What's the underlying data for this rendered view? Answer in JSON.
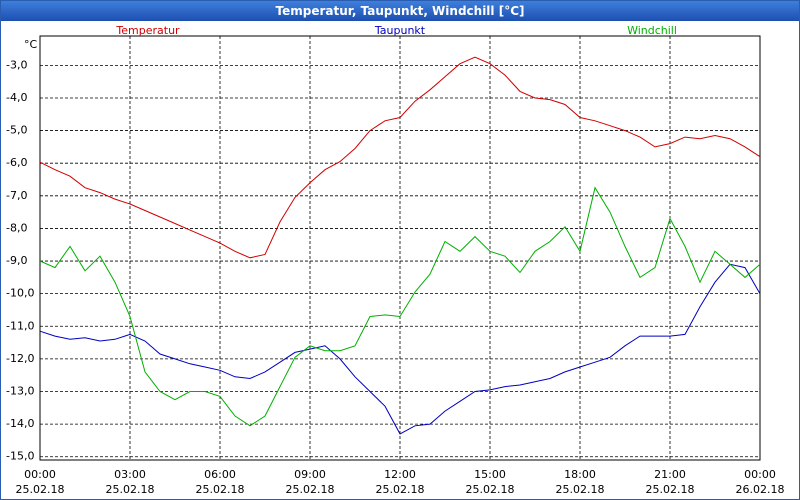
{
  "chart_data": {
    "type": "line",
    "title": "Temperatur, Taupunkt, Windchill [°C]",
    "y_unit": "°C",
    "x": [
      0,
      0.5,
      1,
      1.5,
      2,
      2.5,
      3,
      3.5,
      4,
      4.5,
      5,
      5.5,
      6,
      6.5,
      7,
      7.5,
      8,
      8.5,
      9,
      9.5,
      10,
      10.5,
      11,
      11.5,
      12,
      12.5,
      13,
      13.5,
      14,
      14.5,
      15,
      15.5,
      16,
      16.5,
      17,
      17.5,
      18,
      18.5,
      19,
      19.5,
      20,
      20.5,
      21,
      21.5,
      22,
      22.5,
      23,
      23.5,
      24
    ],
    "series": [
      {
        "name": "Temperatur",
        "color": "#d00000",
        "values": [
          -5.97,
          -6.2,
          -6.4,
          -6.75,
          -6.9,
          -7.1,
          -7.25,
          -7.45,
          -7.65,
          -7.85,
          -8.05,
          -8.25,
          -8.45,
          -8.7,
          -8.9,
          -8.8,
          -7.8,
          -7.05,
          -6.6,
          -6.2,
          -5.95,
          -5.55,
          -5.0,
          -4.7,
          -4.6,
          -4.1,
          -3.75,
          -3.35,
          -2.95,
          -2.75,
          -2.95,
          -3.3,
          -3.8,
          -4.0,
          -4.05,
          -4.2,
          -4.6,
          -4.7,
          -4.85,
          -5.0,
          -5.2,
          -5.5,
          -5.4,
          -5.2,
          -5.25,
          -5.15,
          -5.25,
          -5.5,
          -5.8
        ]
      },
      {
        "name": "Taupunkt",
        "color": "#0000c0",
        "values": [
          -11.15,
          -11.3,
          -11.4,
          -11.35,
          -11.45,
          -11.4,
          -11.25,
          -11.45,
          -11.85,
          -12.0,
          -12.15,
          -12.25,
          -12.35,
          -12.55,
          -12.6,
          -12.4,
          -12.1,
          -11.8,
          -11.7,
          -11.6,
          -12.0,
          -12.55,
          -13.0,
          -13.45,
          -14.3,
          -14.05,
          -14.0,
          -13.6,
          -13.3,
          -13.0,
          -12.95,
          -12.85,
          -12.8,
          -12.7,
          -12.6,
          -12.4,
          -12.25,
          -12.1,
          -11.95,
          -11.6,
          -11.3,
          -11.3,
          -11.3,
          -11.25,
          -10.4,
          -9.65,
          -9.1,
          -9.2,
          -10.0
        ]
      },
      {
        "name": "Windchill",
        "color": "#00b000",
        "values": [
          -9.0,
          -9.2,
          -8.55,
          -9.3,
          -8.85,
          -9.65,
          -10.7,
          -12.4,
          -13.0,
          -13.25,
          -13.0,
          -13.0,
          -13.15,
          -13.75,
          -14.05,
          -13.75,
          -12.85,
          -11.95,
          -11.6,
          -11.75,
          -11.75,
          -11.6,
          -10.7,
          -10.65,
          -10.7,
          -9.95,
          -9.4,
          -8.4,
          -8.7,
          -8.25,
          -8.7,
          -8.85,
          -9.35,
          -8.7,
          -8.4,
          -7.95,
          -8.7,
          -6.75,
          -7.5,
          -8.55,
          -9.5,
          -9.2,
          -7.7,
          -8.55,
          -9.65,
          -8.7,
          -9.1,
          -9.5,
          -9.1
        ]
      }
    ],
    "xlim": [
      0,
      24
    ],
    "xticks": [
      {
        "value": 0,
        "label": "00:00",
        "date": "25.02.18"
      },
      {
        "value": 3,
        "label": "03:00",
        "date": "25.02.18"
      },
      {
        "value": 6,
        "label": "06:00",
        "date": "25.02.18"
      },
      {
        "value": 9,
        "label": "09:00",
        "date": "25.02.18"
      },
      {
        "value": 12,
        "label": "12:00",
        "date": "25.02.18"
      },
      {
        "value": 15,
        "label": "15:00",
        "date": "25.02.18"
      },
      {
        "value": 18,
        "label": "18:00",
        "date": "25.02.18"
      },
      {
        "value": 21,
        "label": "21:00",
        "date": "25.02.18"
      },
      {
        "value": 24,
        "label": "00:00",
        "date": "26.02.18"
      }
    ],
    "ylim": [
      -15.1,
      -2.1
    ],
    "yticks": [
      {
        "value": -3,
        "label": "-3,0"
      },
      {
        "value": -4,
        "label": "-4,0"
      },
      {
        "value": -5,
        "label": "-5,0"
      },
      {
        "value": -6,
        "label": "-6,0"
      },
      {
        "value": -7,
        "label": "-7,0"
      },
      {
        "value": -8,
        "label": "-8,0"
      },
      {
        "value": -9,
        "label": "-9,0"
      },
      {
        "value": -10,
        "label": "-10,0"
      },
      {
        "value": -11,
        "label": "-11,0"
      },
      {
        "value": -12,
        "label": "-12,0"
      },
      {
        "value": -13,
        "label": "-13,0"
      },
      {
        "value": -14,
        "label": "-14,0"
      },
      {
        "value": -15,
        "label": "-15,0"
      }
    ],
    "grid": true
  }
}
